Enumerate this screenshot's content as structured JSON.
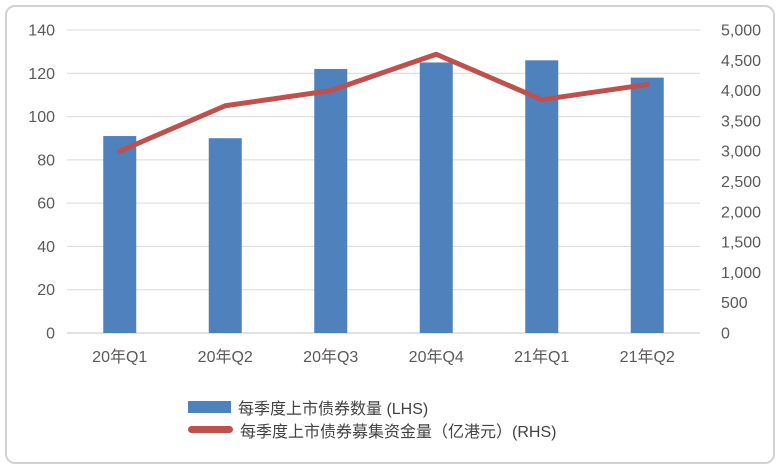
{
  "chart_data": {
    "type": "combo",
    "categories": [
      "20年Q1",
      "20年Q2",
      "20年Q3",
      "20年Q4",
      "21年Q1",
      "21年Q2"
    ],
    "series": [
      {
        "name": "每季度上市债券数量 (LHS)",
        "type": "bar",
        "axis": "left",
        "color": "#4F81BD",
        "values": [
          91,
          90,
          122,
          125,
          126,
          118
        ]
      },
      {
        "name": "每季度上市债券募集资金量（亿港元）(RHS)",
        "type": "line",
        "axis": "right",
        "color": "#C0504D",
        "values": [
          3000,
          3750,
          4000,
          4600,
          3850,
          4100
        ]
      }
    ],
    "left_axis": {
      "min": 0,
      "max": 140,
      "step": 20,
      "tick_labels": [
        "0",
        "20",
        "40",
        "60",
        "80",
        "100",
        "120",
        "140"
      ]
    },
    "right_axis": {
      "min": 0,
      "max": 5000,
      "step": 500,
      "tick_labels": [
        "0",
        "500",
        "1,000",
        "1,500",
        "2,000",
        "2,500",
        "3,000",
        "3,500",
        "4,000",
        "4,500",
        "5,000"
      ]
    },
    "grid": true,
    "legend_position": "bottom",
    "plot_bg": "#ffffff",
    "gridline_color": "#d9d9d9"
  }
}
